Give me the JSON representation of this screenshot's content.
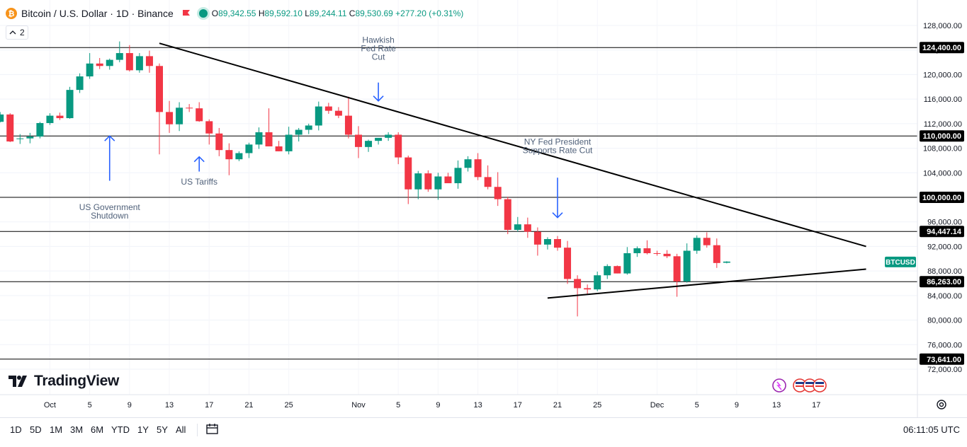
{
  "header": {
    "symbol_title": "Bitcoin / U.S. Dollar · 1D · Binance",
    "open_label": "O",
    "open_value": "89,342.55",
    "high_label": "H",
    "high_value": "89,592.10",
    "low_label": "L",
    "low_value": "89,244.11",
    "close_label": "C",
    "close_value": "89,530.69",
    "change": "+277.20 (+0.31%)",
    "indicator_count": "2"
  },
  "colors": {
    "up": "#089981",
    "down": "#f23645",
    "trend": "#000000",
    "arrow": "#2962ff",
    "annotation_text": "#50617a"
  },
  "chart_data": {
    "type": "candlestick",
    "symbol": "BTCUSD",
    "ylim": [
      69500,
      131000
    ],
    "y_ticks": [
      "72,000.00",
      "76,000.00",
      "80,000.00",
      "84,000.00",
      "88,000.00",
      "92,000.00",
      "96,000.00",
      "100,000.00",
      "104,000.00",
      "108,000.00",
      "112,000.00",
      "116,000.00",
      "120,000.00",
      "124,000.00",
      "128,000.00"
    ],
    "y_tick_values": [
      72000,
      76000,
      80000,
      84000,
      88000,
      92000,
      96000,
      100000,
      104000,
      108000,
      112000,
      116000,
      120000,
      124000,
      128000
    ],
    "x_ticks": [
      {
        "label": "21",
        "idx": -11
      },
      {
        "label": "25",
        "idx": -7
      },
      {
        "label": "Oct",
        "idx": -1
      },
      {
        "label": "5",
        "idx": 3
      },
      {
        "label": "9",
        "idx": 7
      },
      {
        "label": "13",
        "idx": 11
      },
      {
        "label": "17",
        "idx": 15
      },
      {
        "label": "21",
        "idx": 19
      },
      {
        "label": "25",
        "idx": 23
      },
      {
        "label": "Nov",
        "idx": 30
      },
      {
        "label": "5",
        "idx": 34
      },
      {
        "label": "9",
        "idx": 38
      },
      {
        "label": "13",
        "idx": 42
      },
      {
        "label": "17",
        "idx": 46
      },
      {
        "label": "21",
        "idx": 50
      },
      {
        "label": "25",
        "idx": 54
      },
      {
        "label": "Dec",
        "idx": 60
      },
      {
        "label": "5",
        "idx": 64
      },
      {
        "label": "9",
        "idx": 68
      },
      {
        "label": "13",
        "idx": 72
      },
      {
        "label": "17",
        "idx": 76
      }
    ],
    "candles": [
      {
        "o": 109500,
        "h": 110300,
        "l": 108700,
        "c": 109600
      },
      {
        "o": 109600,
        "h": 110500,
        "l": 108800,
        "c": 109900
      },
      {
        "o": 109900,
        "h": 112300,
        "l": 109600,
        "c": 112100
      },
      {
        "o": 112100,
        "h": 113700,
        "l": 111800,
        "c": 113300
      },
      {
        "o": 113300,
        "h": 113800,
        "l": 112600,
        "c": 112900
      },
      {
        "o": 112900,
        "h": 118000,
        "l": 112800,
        "c": 117500
      },
      {
        "o": 117500,
        "h": 120200,
        "l": 117000,
        "c": 119700
      },
      {
        "o": 119700,
        "h": 123500,
        "l": 119300,
        "c": 121800
      },
      {
        "o": 121800,
        "h": 122700,
        "l": 120900,
        "c": 121400
      },
      {
        "o": 121400,
        "h": 122600,
        "l": 120800,
        "c": 122400
      },
      {
        "o": 122400,
        "h": 125400,
        "l": 122000,
        "c": 123500
      },
      {
        "o": 123500,
        "h": 124800,
        "l": 120500,
        "c": 120700
      },
      {
        "o": 120700,
        "h": 123500,
        "l": 120300,
        "c": 123000
      },
      {
        "o": 123000,
        "h": 123900,
        "l": 120300,
        "c": 121400
      },
      {
        "o": 121400,
        "h": 121800,
        "l": 107000,
        "c": 113900
      },
      {
        "o": 113900,
        "h": 115700,
        "l": 110500,
        "c": 111900
      },
      {
        "o": 111900,
        "h": 115500,
        "l": 110800,
        "c": 114600
      },
      {
        "o": 114600,
        "h": 115200,
        "l": 113900,
        "c": 114500
      },
      {
        "o": 114500,
        "h": 115500,
        "l": 112300,
        "c": 112400
      },
      {
        "o": 112400,
        "h": 112700,
        "l": 108600,
        "c": 110400
      },
      {
        "o": 110400,
        "h": 111300,
        "l": 106700,
        "c": 107700
      },
      {
        "o": 107700,
        "h": 108800,
        "l": 103600,
        "c": 106200
      },
      {
        "o": 106200,
        "h": 107500,
        "l": 105900,
        "c": 107200
      },
      {
        "o": 107200,
        "h": 108900,
        "l": 106400,
        "c": 108600
      },
      {
        "o": 108600,
        "h": 111400,
        "l": 107900,
        "c": 110600
      },
      {
        "o": 110600,
        "h": 114500,
        "l": 108800,
        "c": 108300
      },
      {
        "o": 108300,
        "h": 109200,
        "l": 107500,
        "c": 107500
      },
      {
        "o": 107500,
        "h": 111500,
        "l": 107000,
        "c": 110200
      },
      {
        "o": 110200,
        "h": 111300,
        "l": 109100,
        "c": 111000
      },
      {
        "o": 111000,
        "h": 112000,
        "l": 110300,
        "c": 111700
      },
      {
        "o": 111700,
        "h": 115600,
        "l": 110900,
        "c": 114800
      },
      {
        "o": 114800,
        "h": 115400,
        "l": 113600,
        "c": 114100
      },
      {
        "o": 114100,
        "h": 114700,
        "l": 112900,
        "c": 113300
      },
      {
        "o": 113300,
        "h": 116400,
        "l": 109600,
        "c": 110200
      },
      {
        "o": 110200,
        "h": 111600,
        "l": 106400,
        "c": 108200
      },
      {
        "o": 108200,
        "h": 109400,
        "l": 107400,
        "c": 109200
      },
      {
        "o": 109200,
        "h": 109600,
        "l": 108600,
        "c": 109700
      },
      {
        "o": 109700,
        "h": 110600,
        "l": 109200,
        "c": 110200
      },
      {
        "o": 110200,
        "h": 110600,
        "l": 105400,
        "c": 106500
      },
      {
        "o": 106500,
        "h": 106800,
        "l": 98900,
        "c": 101300
      },
      {
        "o": 101300,
        "h": 104300,
        "l": 99700,
        "c": 103900
      },
      {
        "o": 103900,
        "h": 104400,
        "l": 100900,
        "c": 101300
      },
      {
        "o": 101300,
        "h": 104000,
        "l": 99600,
        "c": 103400
      },
      {
        "o": 103400,
        "h": 104000,
        "l": 102600,
        "c": 102300
      },
      {
        "o": 102300,
        "h": 106000,
        "l": 101400,
        "c": 104800
      },
      {
        "o": 104800,
        "h": 106700,
        "l": 104200,
        "c": 106200
      },
      {
        "o": 106200,
        "h": 107200,
        "l": 102800,
        "c": 103300
      },
      {
        "o": 103300,
        "h": 105200,
        "l": 101300,
        "c": 101700
      },
      {
        "o": 101700,
        "h": 104100,
        "l": 98600,
        "c": 99700
      },
      {
        "o": 99700,
        "h": 100100,
        "l": 94000,
        "c": 94700
      },
      {
        "o": 94700,
        "h": 96800,
        "l": 94400,
        "c": 95600
      },
      {
        "o": 95600,
        "h": 96700,
        "l": 93400,
        "c": 94400
      },
      {
        "o": 94400,
        "h": 95100,
        "l": 90500,
        "c": 92300
      },
      {
        "o": 92300,
        "h": 93500,
        "l": 91500,
        "c": 93200
      },
      {
        "o": 93200,
        "h": 93700,
        "l": 91300,
        "c": 91800
      },
      {
        "o": 91800,
        "h": 92900,
        "l": 85900,
        "c": 86700
      },
      {
        "o": 86700,
        "h": 87300,
        "l": 80600,
        "c": 85200
      },
      {
        "o": 85200,
        "h": 85800,
        "l": 84200,
        "c": 85000
      },
      {
        "o": 85000,
        "h": 87900,
        "l": 84700,
        "c": 87300
      },
      {
        "o": 87300,
        "h": 89100,
        "l": 86700,
        "c": 88800
      },
      {
        "o": 88800,
        "h": 88900,
        "l": 87600,
        "c": 87600
      },
      {
        "o": 87600,
        "h": 91900,
        "l": 87400,
        "c": 90900
      },
      {
        "o": 90900,
        "h": 92000,
        "l": 90300,
        "c": 91700
      },
      {
        "o": 91700,
        "h": 93000,
        "l": 90700,
        "c": 90900
      },
      {
        "o": 90900,
        "h": 91300,
        "l": 90500,
        "c": 90800
      },
      {
        "o": 90800,
        "h": 91400,
        "l": 90100,
        "c": 90400
      },
      {
        "o": 90400,
        "h": 90800,
        "l": 83800,
        "c": 86300
      },
      {
        "o": 86300,
        "h": 92500,
        "l": 86100,
        "c": 91300
      },
      {
        "o": 91300,
        "h": 93800,
        "l": 90800,
        "c": 93400
      },
      {
        "o": 93400,
        "h": 94300,
        "l": 91800,
        "c": 92200
      },
      {
        "o": 92200,
        "h": 93300,
        "l": 88500,
        "c": 89300
      },
      {
        "o": 89342.55,
        "h": 89592.1,
        "l": 89244.11,
        "c": 89530.69
      }
    ],
    "horizontal_levels": [
      {
        "price": 124400,
        "label": "124,400.00"
      },
      {
        "price": 110000,
        "label": "110,000.00"
      },
      {
        "price": 100000,
        "label": "100,000.00"
      },
      {
        "price": 94447.14,
        "label": "94,447.14"
      },
      {
        "price": 86263,
        "label": "86,263.00"
      },
      {
        "price": 73641,
        "label": "73,641.00"
      }
    ],
    "trendlines": [
      {
        "from": {
          "idx": 10,
          "price": 125100
        },
        "to": {
          "idx": 81,
          "price": 92000
        }
      },
      {
        "from": {
          "idx": 49,
          "price": 83600
        },
        "to": {
          "idx": 81,
          "price": 88300
        }
      }
    ],
    "current_price_label": "BTCUSD",
    "annotations": [
      {
        "lines": [
          "US Government",
          "Shutdown"
        ],
        "idx": 5,
        "arrow": "up",
        "arrow_top": 110000,
        "arrow_bottom": 102700,
        "text_price": 97900
      },
      {
        "lines": [
          "US Tariffs"
        ],
        "idx": 14,
        "arrow": "up",
        "arrow_top": 106600,
        "arrow_bottom": 104200,
        "text_price": 102100
      },
      {
        "lines": [
          "Hawkish",
          "Fed Rate",
          "Cut"
        ],
        "idx": 32,
        "arrow": "down",
        "arrow_top": 118700,
        "arrow_bottom": 115700,
        "text_price": 125200
      },
      {
        "lines": [
          "NY Fed President",
          "Supports Rate Cut"
        ],
        "idx": 50,
        "arrow": "down",
        "arrow_top": 103200,
        "arrow_bottom": 96700,
        "text_price": 108600
      }
    ]
  },
  "bottom_bar": {
    "ranges": [
      "1D",
      "5D",
      "1M",
      "3M",
      "6M",
      "YTD",
      "1Y",
      "5Y",
      "All"
    ],
    "clock": "06:11:05 UTC"
  },
  "branding": {
    "logo_text": "TradingView"
  }
}
